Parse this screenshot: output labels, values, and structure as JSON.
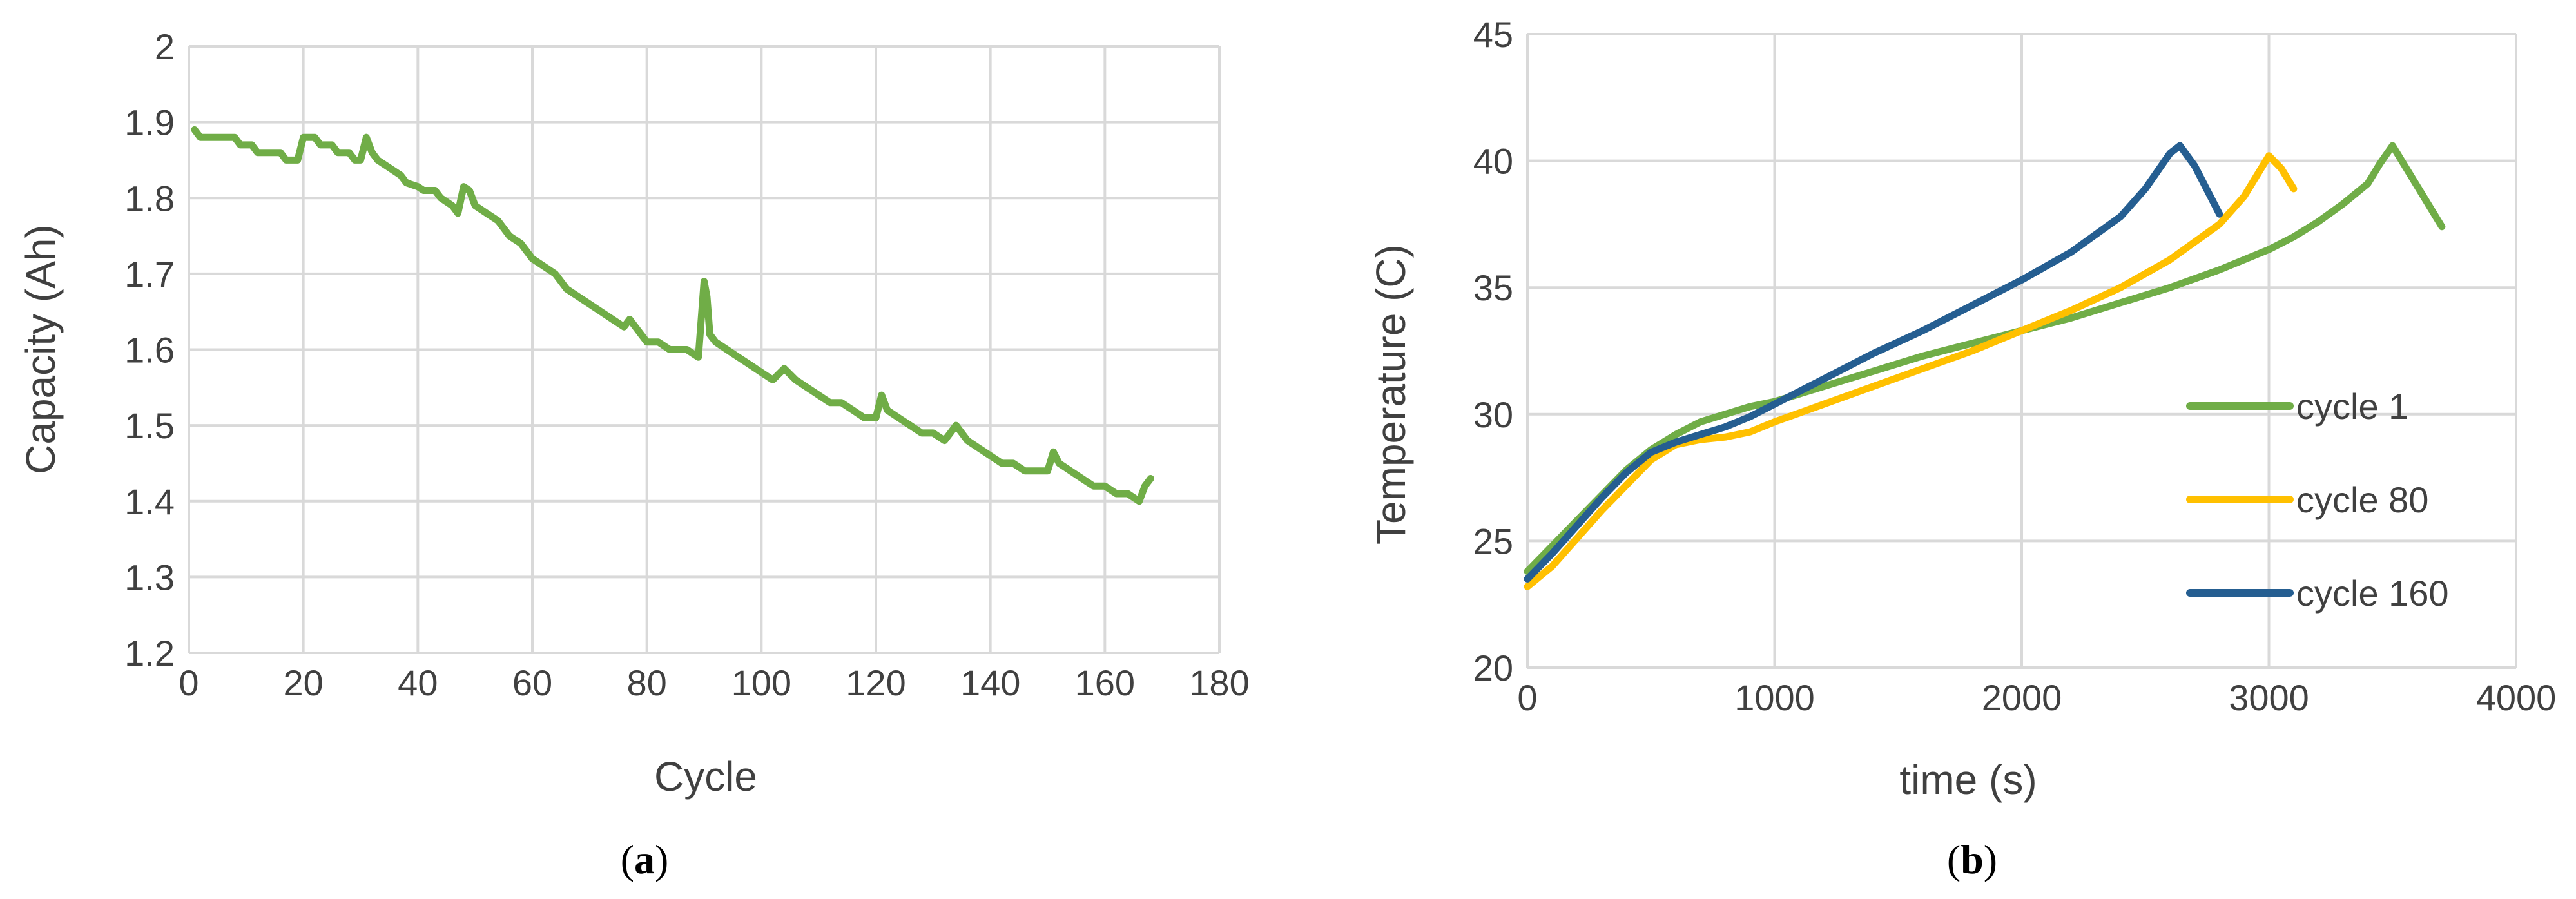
{
  "chart_data": [
    {
      "type": "line",
      "xlabel": "Cycle",
      "ylabel": "Capacity (Ah)",
      "xlim": [
        0,
        180
      ],
      "ylim": [
        1.2,
        2.0
      ],
      "xticks": [
        "0",
        "20",
        "40",
        "60",
        "80",
        "100",
        "120",
        "140",
        "160",
        "180"
      ],
      "yticks": [
        "1.2",
        "1.3",
        "1.4",
        "1.5",
        "1.6",
        "1.7",
        "1.8",
        "1.9",
        "2"
      ],
      "grid": true,
      "legend": "none",
      "caption_letter": "a",
      "series": [
        {
          "color": "#70ad47",
          "x": [
            1,
            2,
            4,
            6,
            8,
            9,
            11,
            12,
            14,
            16,
            17,
            19,
            20,
            21,
            22,
            23,
            25,
            26,
            27,
            28,
            29,
            30,
            31,
            32,
            33,
            35,
            37,
            38,
            40,
            41,
            43,
            44,
            46,
            47,
            48,
            49,
            50,
            52,
            54,
            56,
            58,
            60,
            62,
            64,
            66,
            68,
            70,
            72,
            74,
            76,
            77,
            79,
            80,
            82,
            84,
            85,
            87,
            89,
            90,
            90.5,
            91,
            92,
            94,
            96,
            98,
            100,
            102,
            104,
            106,
            108,
            110,
            112,
            114,
            116,
            118,
            120,
            121,
            122,
            124,
            126,
            128,
            130,
            132,
            133,
            134,
            136,
            138,
            140,
            142,
            144,
            146,
            148,
            150,
            151,
            152,
            154,
            156,
            158,
            160,
            162,
            164,
            166,
            167,
            168
          ],
          "y": [
            1.89,
            1.88,
            1.88,
            1.88,
            1.88,
            1.87,
            1.87,
            1.86,
            1.86,
            1.86,
            1.85,
            1.85,
            1.88,
            1.88,
            1.88,
            1.87,
            1.87,
            1.86,
            1.86,
            1.86,
            1.85,
            1.85,
            1.88,
            1.86,
            1.85,
            1.84,
            1.83,
            1.82,
            1.815,
            1.81,
            1.81,
            1.8,
            1.79,
            1.78,
            1.815,
            1.81,
            1.79,
            1.78,
            1.77,
            1.75,
            1.74,
            1.72,
            1.71,
            1.7,
            1.68,
            1.67,
            1.66,
            1.65,
            1.64,
            1.63,
            1.64,
            1.62,
            1.61,
            1.61,
            1.6,
            1.6,
            1.6,
            1.59,
            1.69,
            1.67,
            1.62,
            1.61,
            1.6,
            1.59,
            1.58,
            1.57,
            1.56,
            1.575,
            1.56,
            1.55,
            1.54,
            1.53,
            1.53,
            1.52,
            1.51,
            1.51,
            1.54,
            1.52,
            1.51,
            1.5,
            1.49,
            1.49,
            1.48,
            1.49,
            1.5,
            1.48,
            1.47,
            1.46,
            1.45,
            1.45,
            1.44,
            1.44,
            1.44,
            1.465,
            1.45,
            1.44,
            1.43,
            1.42,
            1.42,
            1.41,
            1.41,
            1.4,
            1.42,
            1.43
          ]
        }
      ]
    },
    {
      "type": "line",
      "xlabel": "time (s)",
      "ylabel": "Temperature (C)",
      "xlim": [
        0,
        4000
      ],
      "ylim": [
        20,
        45
      ],
      "xticks": [
        "0",
        "1000",
        "2000",
        "3000",
        "4000"
      ],
      "yticks": [
        "20",
        "25",
        "30",
        "35",
        "40",
        "45"
      ],
      "grid": true,
      "legend": "right",
      "caption_letter": "b",
      "series": [
        {
          "name": "cycle 1",
          "color": "#70ad47",
          "x": [
            0,
            100,
            200,
            300,
            400,
            500,
            600,
            700,
            800,
            900,
            1000,
            1200,
            1400,
            1600,
            1800,
            2000,
            2200,
            2400,
            2600,
            2800,
            3000,
            3100,
            3200,
            3300,
            3400,
            3450,
            3500,
            3600,
            3700
          ],
          "y": [
            23.8,
            24.8,
            25.8,
            26.8,
            27.8,
            28.6,
            29.2,
            29.7,
            30.0,
            30.3,
            30.5,
            31.1,
            31.7,
            32.3,
            32.8,
            33.3,
            33.8,
            34.4,
            35.0,
            35.7,
            36.5,
            37.0,
            37.6,
            38.3,
            39.1,
            39.9,
            40.6,
            39.0,
            37.4
          ]
        },
        {
          "name": "cycle 80",
          "color": "#ffc000",
          "x": [
            0,
            100,
            200,
            300,
            400,
            500,
            600,
            700,
            800,
            900,
            1000,
            1200,
            1400,
            1600,
            1800,
            2000,
            2200,
            2400,
            2600,
            2800,
            2900,
            3000,
            3050,
            3100
          ],
          "y": [
            23.2,
            24.0,
            25.1,
            26.2,
            27.2,
            28.2,
            28.8,
            29.0,
            29.1,
            29.3,
            29.7,
            30.4,
            31.1,
            31.8,
            32.5,
            33.3,
            34.1,
            35.0,
            36.1,
            37.5,
            38.6,
            40.2,
            39.7,
            38.9
          ]
        },
        {
          "name": "cycle 160",
          "color": "#255e91",
          "x": [
            0,
            100,
            200,
            300,
            400,
            500,
            600,
            700,
            800,
            900,
            1000,
            1200,
            1400,
            1600,
            1800,
            2000,
            2200,
            2400,
            2500,
            2600,
            2640,
            2700,
            2800
          ],
          "y": [
            23.5,
            24.5,
            25.6,
            26.7,
            27.7,
            28.5,
            28.9,
            29.2,
            29.5,
            29.9,
            30.4,
            31.4,
            32.4,
            33.3,
            34.3,
            35.3,
            36.4,
            37.8,
            38.9,
            40.3,
            40.6,
            39.8,
            37.9
          ]
        }
      ]
    }
  ]
}
